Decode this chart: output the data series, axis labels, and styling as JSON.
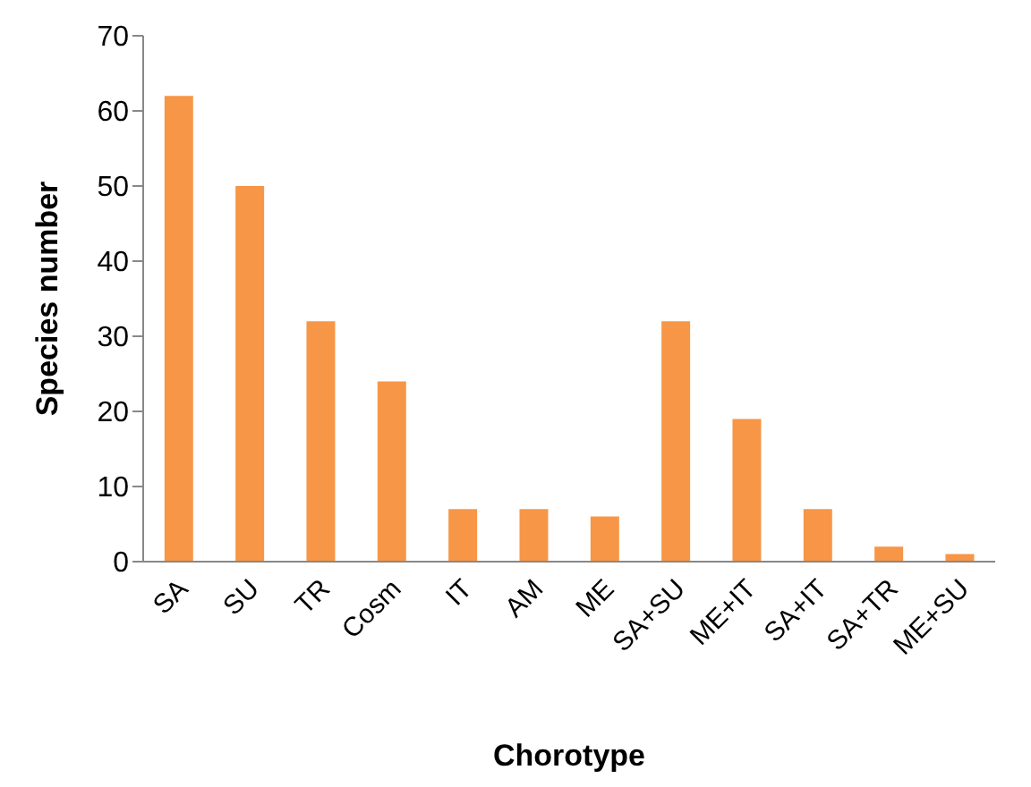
{
  "chart_data": {
    "type": "bar",
    "xlabel": "Chorotype",
    "ylabel": "Species number",
    "categories": [
      "SA",
      "SU",
      "TR",
      "Cosm",
      "IT",
      "AM",
      "ME",
      "SA+SU",
      "ME+IT",
      "SA+IT",
      "SA+TR",
      "ME+SU"
    ],
    "values": [
      62,
      50,
      32,
      24,
      7,
      7,
      6,
      32,
      19,
      7,
      2,
      1
    ],
    "color": "#f79646",
    "ylim": [
      0,
      70
    ],
    "yticks": [
      0,
      10,
      20,
      30,
      40,
      50,
      60,
      70
    ],
    "grid": false,
    "legend": false
  }
}
